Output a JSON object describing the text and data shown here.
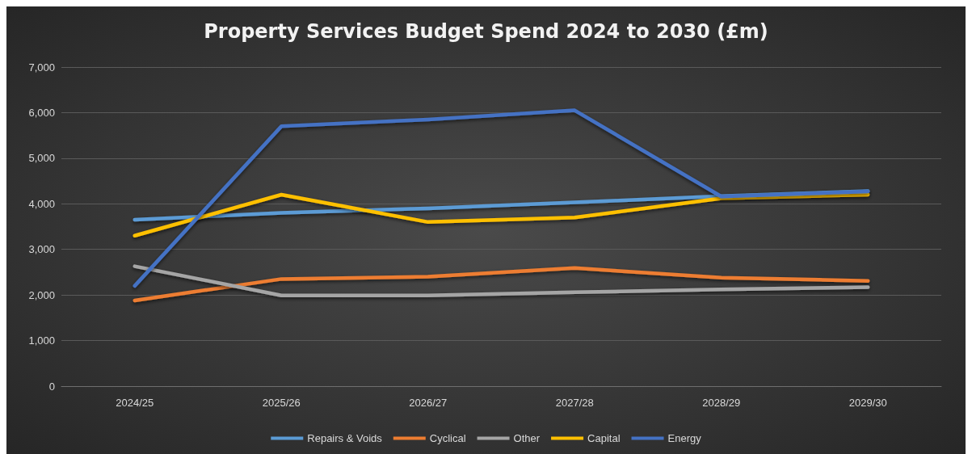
{
  "chart_data": {
    "type": "line",
    "title": "Property Services Budget Spend 2024 to 2030 (£m)",
    "categories": [
      "2024/25",
      "2025/26",
      "2026/27",
      "2027/28",
      "2028/29",
      "2029/30"
    ],
    "series": [
      {
        "name": "Repairs & Voids",
        "color": "#5b9bd5",
        "values": [
          3650,
          3800,
          3900,
          4030,
          4170,
          4280
        ]
      },
      {
        "name": "Cyclical",
        "color": "#ed7d31",
        "values": [
          1880,
          2350,
          2400,
          2590,
          2380,
          2310
        ]
      },
      {
        "name": "Other",
        "color": "#a5a5a5",
        "values": [
          2630,
          1990,
          1990,
          2060,
          2120,
          2170
        ]
      },
      {
        "name": "Capital",
        "color": "#ffc000",
        "values": [
          3300,
          4200,
          3600,
          3700,
          4120,
          4200
        ]
      },
      {
        "name": "Energy",
        "color": "#4472c4",
        "values": [
          2200,
          5700,
          5850,
          6050,
          4160,
          4270
        ]
      }
    ],
    "ylim": [
      0,
      7000
    ],
    "yticks": [
      0,
      {
        "value": 1000,
        "label": "1,000"
      },
      {
        "value": 2000,
        "label": "2,000"
      },
      {
        "value": 3000,
        "label": "3,000"
      },
      {
        "value": 4000,
        "label": "4,000"
      },
      {
        "value": 5000,
        "label": "5,000"
      },
      {
        "value": 6000,
        "label": "6,000"
      },
      {
        "value": 7000,
        "label": "7,000"
      }
    ],
    "grid": "y",
    "legend": "bottom",
    "marker": "none",
    "line_style": "solid"
  }
}
